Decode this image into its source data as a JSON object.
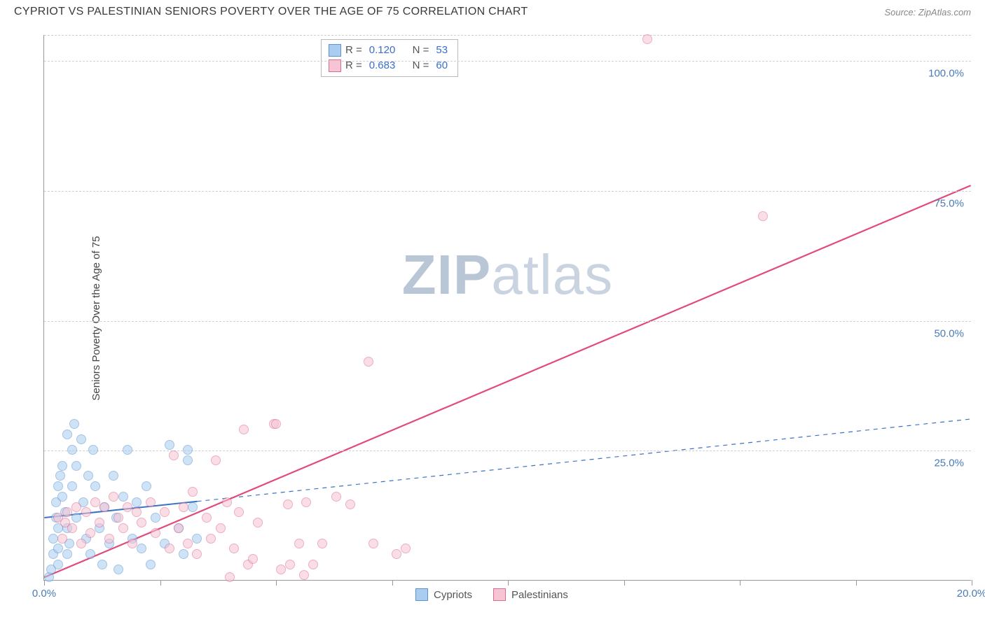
{
  "header": {
    "title": "CYPRIOT VS PALESTINIAN SENIORS POVERTY OVER THE AGE OF 75 CORRELATION CHART",
    "source": "Source: ZipAtlas.com"
  },
  "chart": {
    "type": "scatter",
    "y_axis_label": "Seniors Poverty Over the Age of 75",
    "xlim": [
      0,
      20
    ],
    "ylim": [
      0,
      105
    ],
    "x_ticks": [
      0,
      2.5,
      5,
      7.5,
      10,
      12.5,
      15,
      17.5,
      20
    ],
    "x_tick_labels": {
      "0": "0.0%",
      "20": "20.0%"
    },
    "y_ticks": [
      25,
      50,
      75,
      100
    ],
    "y_tick_labels": {
      "25": "25.0%",
      "50": "50.0%",
      "75": "75.0%",
      "100": "100.0%"
    },
    "background_color": "#ffffff",
    "grid_color": "#d0d0d0",
    "point_radius": 7,
    "point_opacity": 0.55,
    "series": [
      {
        "name": "Cypriots",
        "color_fill": "#a9cdf0",
        "color_stroke": "#5b93d6",
        "R": "0.120",
        "N": "53",
        "trend": {
          "x1": 0,
          "y1": 12,
          "x2": 20,
          "y2": 31,
          "solid_until_x": 3.3,
          "color": "#3d73c2",
          "width": 2
        },
        "points": [
          [
            0.1,
            0.5
          ],
          [
            0.15,
            2
          ],
          [
            0.2,
            5
          ],
          [
            0.2,
            8
          ],
          [
            0.25,
            12
          ],
          [
            0.25,
            15
          ],
          [
            0.3,
            18
          ],
          [
            0.3,
            10
          ],
          [
            0.3,
            6
          ],
          [
            0.35,
            20
          ],
          [
            0.4,
            22
          ],
          [
            0.4,
            16
          ],
          [
            0.45,
            13
          ],
          [
            0.5,
            28
          ],
          [
            0.5,
            10
          ],
          [
            0.55,
            7
          ],
          [
            0.6,
            25
          ],
          [
            0.6,
            18
          ],
          [
            0.65,
            30
          ],
          [
            0.7,
            12
          ],
          [
            0.7,
            22
          ],
          [
            0.8,
            27
          ],
          [
            0.85,
            15
          ],
          [
            0.9,
            8
          ],
          [
            0.95,
            20
          ],
          [
            1.0,
            5
          ],
          [
            1.05,
            25
          ],
          [
            1.1,
            18
          ],
          [
            1.2,
            10
          ],
          [
            1.25,
            3
          ],
          [
            1.3,
            14
          ],
          [
            1.4,
            7
          ],
          [
            1.5,
            20
          ],
          [
            1.55,
            12
          ],
          [
            1.6,
            2
          ],
          [
            1.7,
            16
          ],
          [
            1.8,
            25
          ],
          [
            1.9,
            8
          ],
          [
            2.0,
            15
          ],
          [
            2.1,
            6
          ],
          [
            2.2,
            18
          ],
          [
            2.3,
            3
          ],
          [
            2.4,
            12
          ],
          [
            2.6,
            7
          ],
          [
            2.7,
            26
          ],
          [
            2.9,
            10
          ],
          [
            3.0,
            5
          ],
          [
            3.1,
            23
          ],
          [
            3.1,
            25
          ],
          [
            3.2,
            14
          ],
          [
            3.3,
            8
          ],
          [
            0.3,
            3
          ],
          [
            0.5,
            5
          ]
        ]
      },
      {
        "name": "Palestinians",
        "color_fill": "#f6c4d3",
        "color_stroke": "#e06b92",
        "R": "0.683",
        "N": "60",
        "trend": {
          "x1": 0,
          "y1": 0.5,
          "x2": 20,
          "y2": 76,
          "solid_until_x": 20,
          "color": "#e24a7a",
          "width": 2.2
        },
        "points": [
          [
            0.3,
            12
          ],
          [
            0.4,
            8
          ],
          [
            0.5,
            13
          ],
          [
            0.6,
            10
          ],
          [
            0.7,
            14
          ],
          [
            0.8,
            7
          ],
          [
            0.9,
            13
          ],
          [
            1.0,
            9
          ],
          [
            1.1,
            15
          ],
          [
            1.2,
            11
          ],
          [
            1.3,
            14
          ],
          [
            1.4,
            8
          ],
          [
            1.5,
            16
          ],
          [
            1.6,
            12
          ],
          [
            1.7,
            10
          ],
          [
            1.8,
            14
          ],
          [
            1.9,
            7
          ],
          [
            2.0,
            13
          ],
          [
            2.1,
            11
          ],
          [
            2.3,
            15
          ],
          [
            2.4,
            9
          ],
          [
            2.6,
            13
          ],
          [
            2.7,
            6
          ],
          [
            2.8,
            24
          ],
          [
            2.9,
            10
          ],
          [
            3.0,
            14
          ],
          [
            3.1,
            7
          ],
          [
            3.2,
            17
          ],
          [
            3.3,
            5
          ],
          [
            3.5,
            12
          ],
          [
            3.6,
            8
          ],
          [
            3.7,
            23
          ],
          [
            3.8,
            10
          ],
          [
            3.95,
            15
          ],
          [
            4.0,
            0.5
          ],
          [
            4.1,
            6
          ],
          [
            4.2,
            13
          ],
          [
            4.3,
            29
          ],
          [
            4.4,
            3
          ],
          [
            4.5,
            4
          ],
          [
            4.6,
            11
          ],
          [
            4.95,
            30
          ],
          [
            5.0,
            30
          ],
          [
            5.1,
            2
          ],
          [
            5.25,
            14.5
          ],
          [
            5.3,
            3
          ],
          [
            5.5,
            7
          ],
          [
            5.6,
            1
          ],
          [
            5.65,
            15
          ],
          [
            5.8,
            3
          ],
          [
            6.0,
            7
          ],
          [
            6.3,
            16
          ],
          [
            6.6,
            14.5
          ],
          [
            7.0,
            42
          ],
          [
            7.1,
            7
          ],
          [
            7.6,
            5
          ],
          [
            7.8,
            6
          ],
          [
            13.0,
            104
          ],
          [
            15.5,
            70
          ],
          [
            0.45,
            11
          ]
        ]
      }
    ],
    "legend_top": {
      "rows": [
        {
          "swatch_fill": "#a9cdf0",
          "swatch_stroke": "#5b93d6",
          "r_label": "R =",
          "r_val": "0.120",
          "n_label": "N =",
          "n_val": "53"
        },
        {
          "swatch_fill": "#f6c4d3",
          "swatch_stroke": "#e06b92",
          "r_label": "R =",
          "r_val": "0.683",
          "n_label": "N =",
          "n_val": "60"
        }
      ]
    },
    "legend_bottom": [
      {
        "swatch_fill": "#a9cdf0",
        "swatch_stroke": "#5b93d6",
        "label": "Cypriots"
      },
      {
        "swatch_fill": "#f6c4d3",
        "swatch_stroke": "#e06b92",
        "label": "Palestinians"
      }
    ],
    "watermark": {
      "part1": "ZIP",
      "part2": "atlas"
    }
  }
}
